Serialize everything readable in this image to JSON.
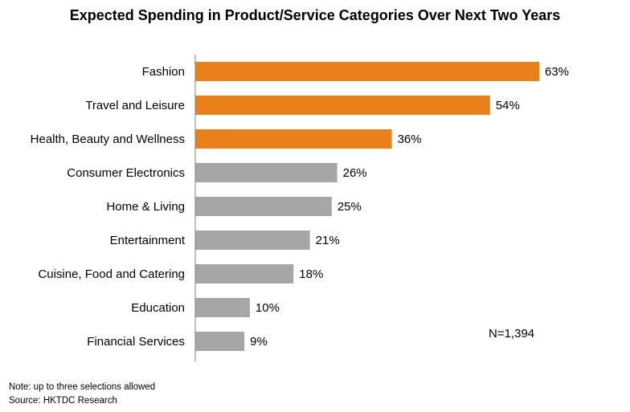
{
  "chart_data": {
    "type": "bar",
    "orientation": "horizontal",
    "title": "Expected Spending in Product/Service Categories Over Next Two Years",
    "categories": [
      "Fashion",
      "Travel and Leisure",
      "Health, Beauty and Wellness",
      "Consumer Electronics",
      "Home & Living",
      "Entertainment",
      "Cuisine, Food and Catering",
      "Education",
      "Financial Services"
    ],
    "values": [
      63,
      54,
      36,
      26,
      25,
      21,
      18,
      10,
      9
    ],
    "value_labels": [
      "63%",
      "54%",
      "36%",
      "26%",
      "25%",
      "21%",
      "18%",
      "10%",
      "9%"
    ],
    "bar_colors": [
      "#E98019",
      "#E98019",
      "#E98019",
      "#A6A6A6",
      "#A6A6A6",
      "#A6A6A6",
      "#A6A6A6",
      "#A6A6A6",
      "#A6A6A6"
    ],
    "xlim": [
      0,
      80
    ],
    "unit": "%",
    "xlabel": "",
    "ylabel": "",
    "grid": false,
    "legend": "none",
    "sample_note": "N=1,394"
  },
  "colors": {
    "highlight": "#E98019",
    "other": "#A6A6A6",
    "axis": "#808080"
  },
  "footnotes": {
    "note": "Note: up to three selections allowed",
    "source": "Source: HKTDC Research"
  }
}
